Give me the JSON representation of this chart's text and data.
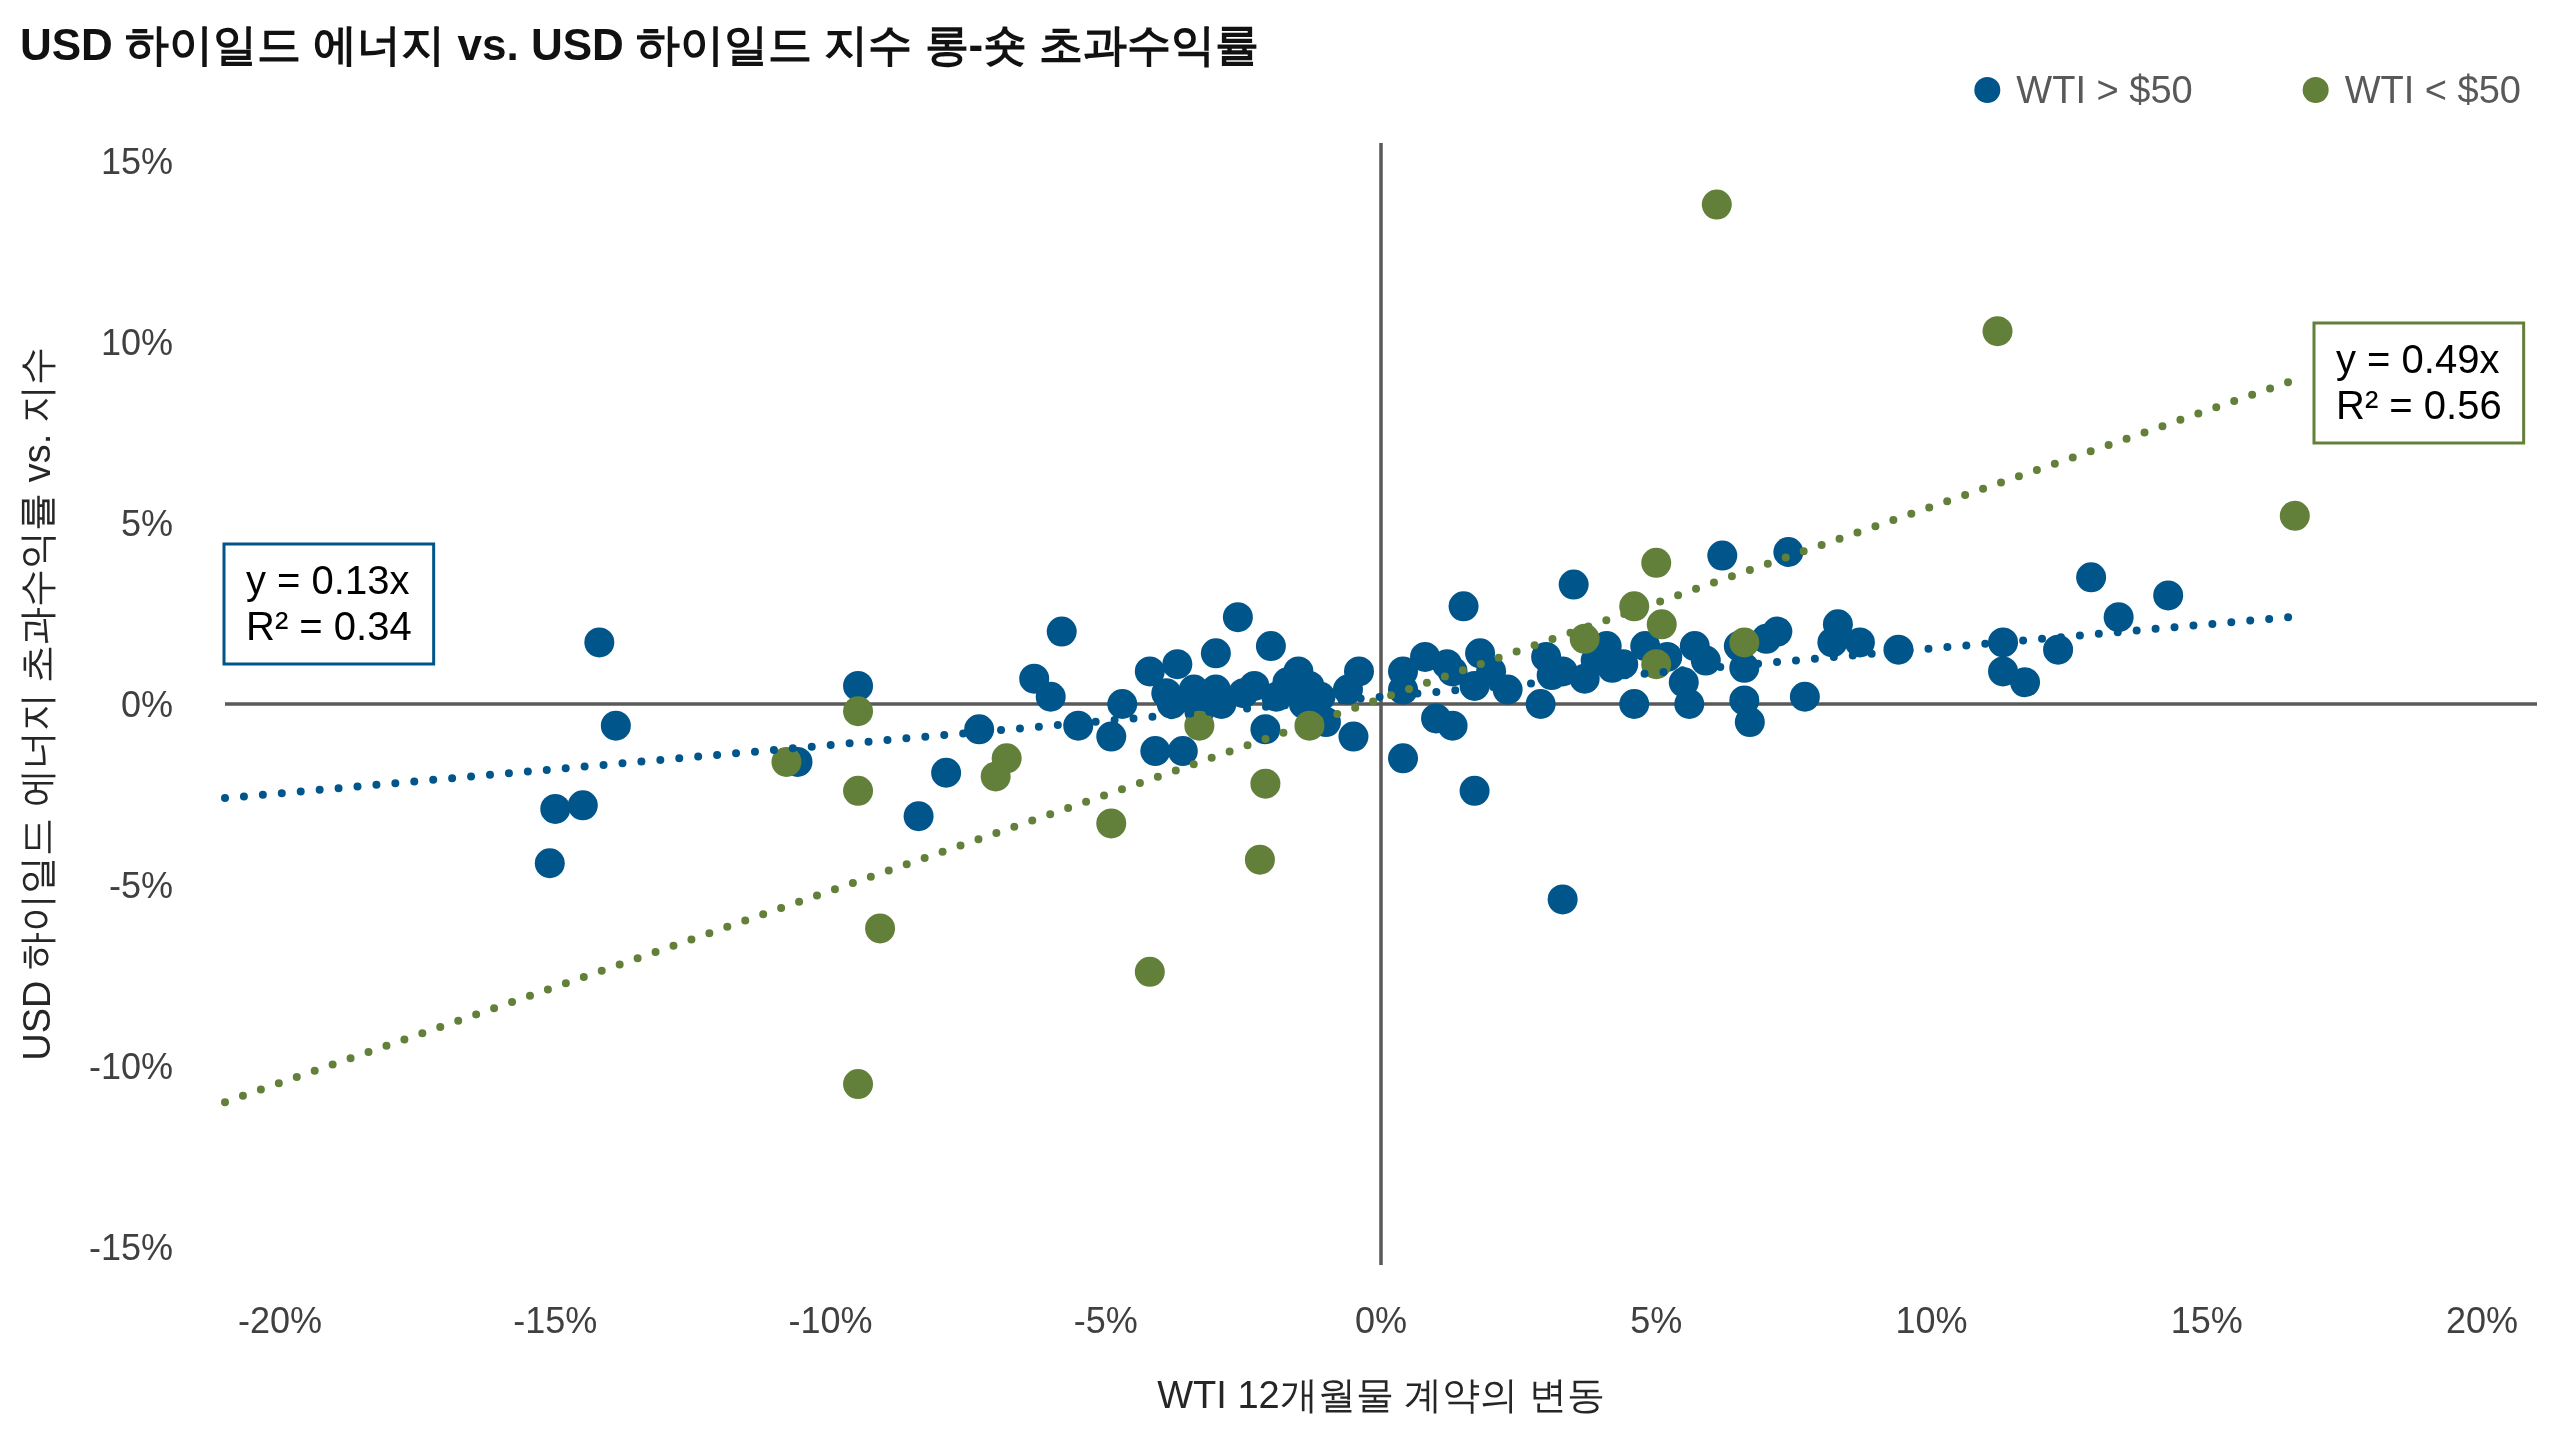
{
  "chart_data": {
    "type": "scatter",
    "title": "USD 하이일드 에너지 vs. USD 하이일드 지수 롱-숏 초과수익률",
    "xlabel": "WTI 12개월물 계약의 변동",
    "ylabel": "USD 하이일드 에너지 초과수익률 vs. 지수",
    "xlim": [
      -21,
      21
    ],
    "ylim": [
      -15.5,
      15.5
    ],
    "xticks": [
      {
        "value": -20,
        "label": "-20%"
      },
      {
        "value": -15,
        "label": "-15%"
      },
      {
        "value": -10,
        "label": "-10%"
      },
      {
        "value": -5,
        "label": "-5%"
      },
      {
        "value": 0,
        "label": "0%"
      },
      {
        "value": 5,
        "label": "5%"
      },
      {
        "value": 10,
        "label": "10%"
      },
      {
        "value": 15,
        "label": "15%"
      },
      {
        "value": 20,
        "label": "20%"
      }
    ],
    "yticks": [
      {
        "value": 15,
        "label": "15%"
      },
      {
        "value": 10,
        "label": "10%"
      },
      {
        "value": 5,
        "label": "5%"
      },
      {
        "value": 0,
        "label": "0%"
      },
      {
        "value": -5,
        "label": "-5%"
      },
      {
        "value": -10,
        "label": "-10%"
      },
      {
        "value": -15,
        "label": "-15%"
      }
    ],
    "marker": "circle",
    "legend": "top right",
    "annotations": [
      "y = 0.13x\nR² = 0.34",
      "y = 0.49x\nR² = 0.56"
    ],
    "series": [
      {
        "name": "WTI > $50",
        "color": "#00558a",
        "x": [
          -14.2,
          -13.9,
          -15.0,
          -14.5,
          -15.1,
          -10.6,
          -9.5,
          -8.4,
          -7.9,
          -7.3,
          -6.3,
          -6.0,
          -5.8,
          -5.5,
          -4.9,
          -4.7,
          -4.2,
          -3.7,
          -4.1,
          -3.6,
          -3.8,
          -3.4,
          -3.0,
          -2.9,
          -3.0,
          -2.6,
          -2.0,
          -2.3,
          -2.1,
          -1.9,
          -1.5,
          -1.3,
          -1.0,
          -0.5,
          -0.4,
          -0.6,
          -1.7,
          -1.4,
          -1.1,
          -3.9,
          -3.3,
          -2.5,
          1.5,
          3.5,
          0.8,
          0.4,
          0.4,
          1.8,
          1.7,
          1.0,
          1.3,
          1.3,
          0.4,
          1.7,
          2.3,
          2.9,
          3.0,
          3.3,
          3.7,
          4.1,
          4.2,
          4.8,
          4.6,
          5.7,
          3.3,
          6.2,
          7.4,
          12.9,
          14.3,
          13.4,
          6.5,
          7.2,
          8.3,
          8.7,
          8.2,
          9.4,
          6.6,
          5.5,
          5.6,
          6.6,
          6.7,
          7.7,
          11.3,
          11.3,
          11.7,
          12.3,
          3.1,
          3.9,
          4.4,
          5.2,
          5.9,
          1.2,
          2.0,
          7.0
        ],
        "values": [
          1.7,
          -0.6,
          -2.9,
          -2.8,
          -4.4,
          -1.6,
          0.5,
          -3.1,
          -1.9,
          -0.7,
          0.7,
          0.2,
          2.0,
          -0.6,
          -0.9,
          0.0,
          0.9,
          1.1,
          -1.3,
          -1.3,
          0.0,
          0.4,
          0.4,
          0.0,
          1.4,
          2.4,
          1.6,
          0.5,
          -0.7,
          0.2,
          0.9,
          0.5,
          -0.5,
          -0.9,
          0.9,
          0.4,
          0.6,
          0.0,
          0.2,
          0.3,
          -0.2,
          0.3,
          2.7,
          3.3,
          1.3,
          0.9,
          0.4,
          1.4,
          0.5,
          -0.4,
          -0.6,
          0.9,
          -1.5,
          -2.4,
          0.4,
          0.0,
          1.3,
          0.9,
          0.7,
          1.6,
          1.0,
          1.6,
          0.0,
          1.6,
          -5.4,
          4.1,
          4.2,
          3.5,
          3.0,
          2.4,
          1.6,
          2.0,
          2.2,
          1.7,
          1.7,
          1.5,
          1.0,
          0.6,
          0.0,
          0.1,
          -0.5,
          0.2,
          1.7,
          0.9,
          0.6,
          1.5,
          0.8,
          1.2,
          1.1,
          1.3,
          1.2,
          1.1,
          0.9,
          1.8
        ]
      },
      {
        "name": "WTI < $50",
        "color": "#62803a",
        "x": [
          -9.5,
          -9.5,
          -9.1,
          -9.5,
          -10.8,
          -7.0,
          -6.8,
          -4.9,
          -4.2,
          -3.3,
          -1.3,
          -2.1,
          -2.2,
          3.7,
          4.6,
          5.0,
          5.1,
          5.0,
          6.6,
          6.1,
          11.2,
          16.6
        ],
        "values": [
          -0.2,
          -2.4,
          -6.2,
          -10.5,
          -1.6,
          -2.0,
          -1.5,
          -3.3,
          -7.4,
          -0.6,
          -0.6,
          -2.2,
          -4.3,
          1.8,
          2.7,
          3.9,
          2.2,
          1.1,
          1.7,
          13.8,
          10.3,
          5.2
        ]
      },
      {
        "type": "line",
        "color": "#00558a",
        "line_style": "dotted",
        "marker": "none",
        "x": [
          -21.0,
          16.5
        ],
        "values": [
          -2.6,
          2.4
        ]
      },
      {
        "type": "line",
        "color": "#62803a",
        "line_style": "dotted",
        "marker": "none",
        "x": [
          -21.0,
          16.5
        ],
        "values": [
          -11.0,
          8.9
        ]
      }
    ]
  }
}
